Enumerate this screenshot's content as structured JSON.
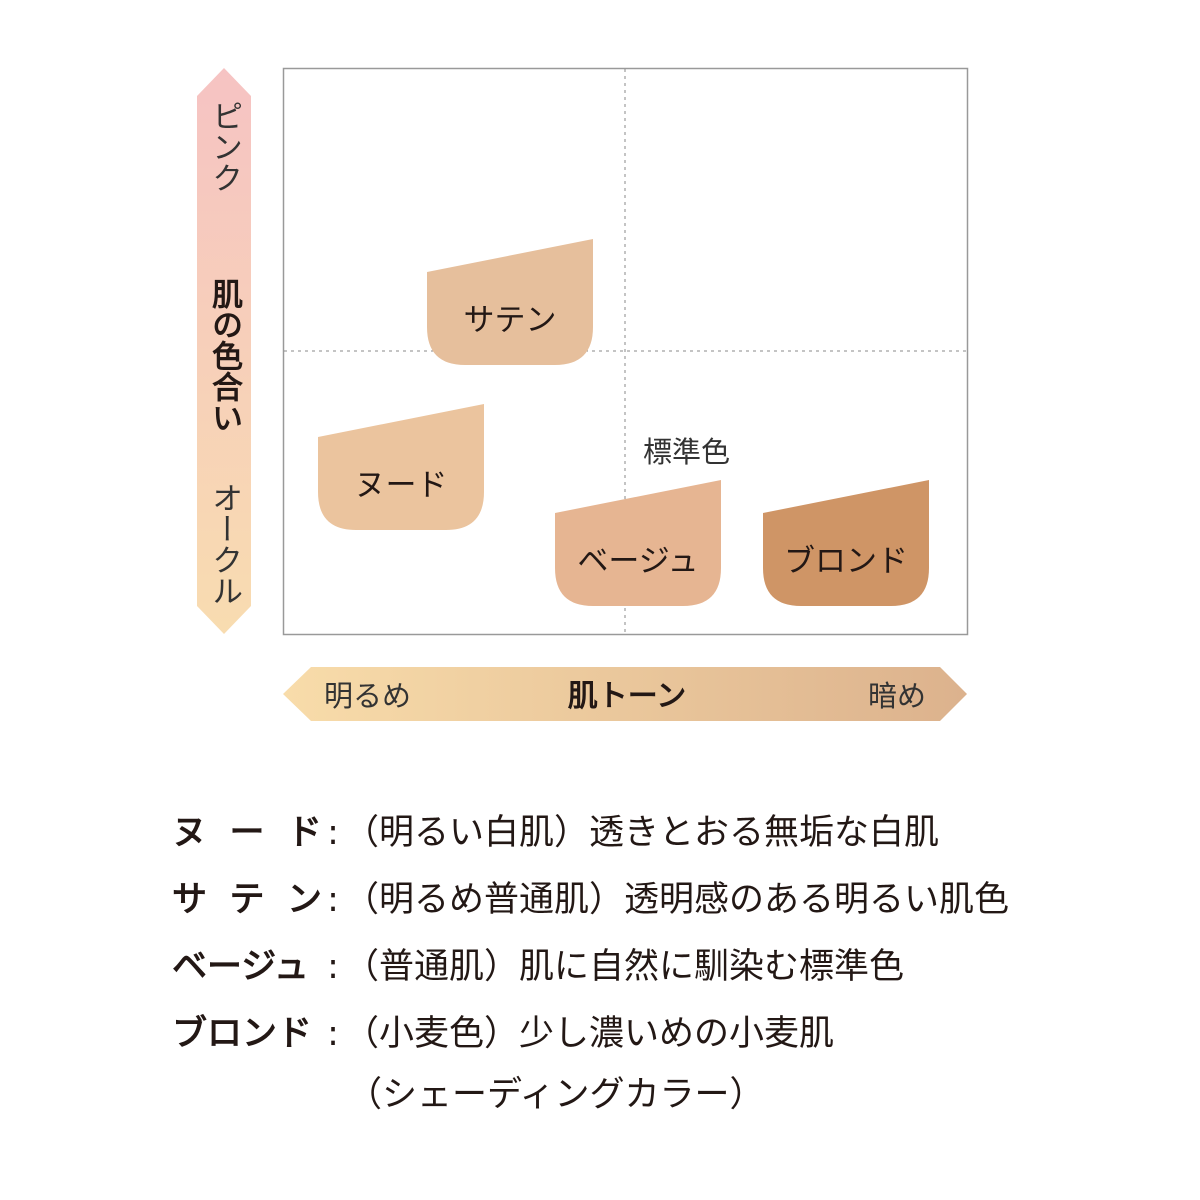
{
  "vertical_axis": {
    "title": "肌の色合い",
    "top_label": "ピンク",
    "bottom_label": "オークル",
    "colors": {
      "top": "#f6c3c3",
      "bottom": "#f8dcb0"
    }
  },
  "horizontal_axis": {
    "title": "肌トーン",
    "left_label": "明るめ",
    "right_label": "暗め",
    "colors": {
      "left": "#f8dcaa",
      "right": "#dcb28d"
    }
  },
  "standard_label": "標準色",
  "swatches": [
    {
      "name": "サテン",
      "color": "#e6bf9c"
    },
    {
      "name": "ヌード",
      "color": "#ebc49e"
    },
    {
      "name": "ベージュ",
      "color": "#e6b592"
    },
    {
      "name": "ブロンド",
      "color": "#cf9566"
    }
  ],
  "legend": [
    {
      "label": [
        "ヌ",
        "ー",
        "ド"
      ],
      "colon": ":",
      "text": "（明るい白肌）透きとおる無垢な白肌"
    },
    {
      "label": [
        "サ",
        "テ",
        "ン"
      ],
      "colon": ":",
      "text": "（明るめ普通肌）透明感のある明るい肌色"
    },
    {
      "label": [
        "ベージュ"
      ],
      "colon": ":",
      "text": "（普通肌）肌に自然に馴染む標準色"
    },
    {
      "label": [
        "ブロンド"
      ],
      "colon": ":",
      "text": "（小麦色）少し濃いめの小麦肌"
    }
  ],
  "legend_continuation": "（シェーディングカラー）"
}
